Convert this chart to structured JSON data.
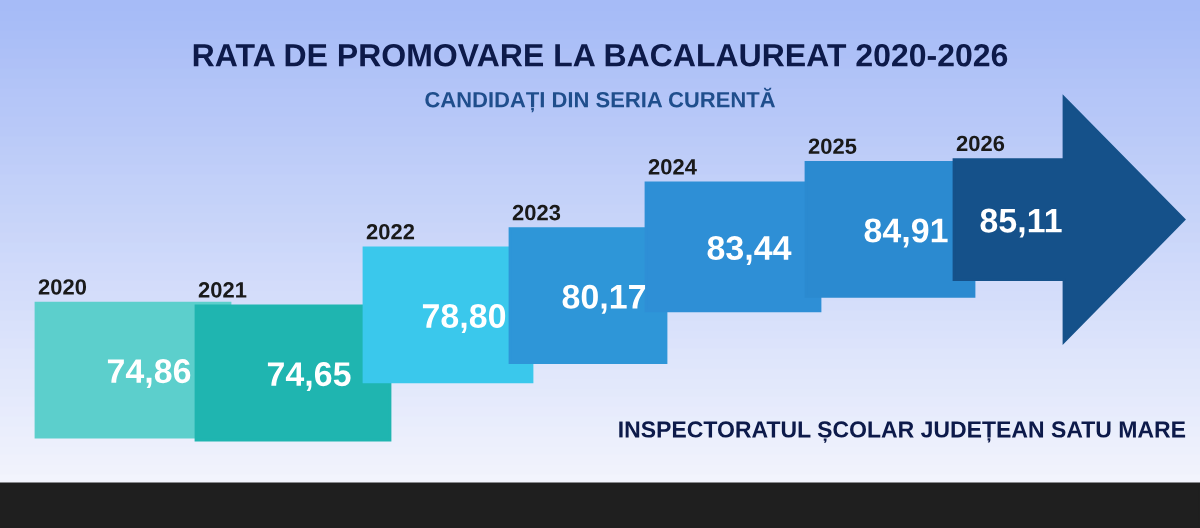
{
  "chart_data": {
    "type": "other",
    "title": "RATA DE PROMOVARE LA BACALAUREAT 2020-2026",
    "subtitle": "CANDIDAȚI DIN SERIA CURENTĂ",
    "categories": [
      "2020",
      "2021",
      "2022",
      "2023",
      "2024",
      "2025",
      "2026"
    ],
    "values": [
      74.86,
      74.65,
      78.8,
      80.17,
      83.44,
      84.91,
      85.11
    ],
    "value_labels": [
      "74,86",
      "74,65",
      "78,80",
      "80,17",
      "83,44",
      "84,91",
      "85,11"
    ],
    "colors": [
      "#5ccfcc",
      "#1fb5b0",
      "#3ac8ec",
      "#2e96d8",
      "#2e8fd6",
      "#2b8ad0",
      "#15518a"
    ],
    "annotations": [
      "INSPECTORATUL ȘCOLAR JUDEȚEAN SATU MARE"
    ]
  }
}
